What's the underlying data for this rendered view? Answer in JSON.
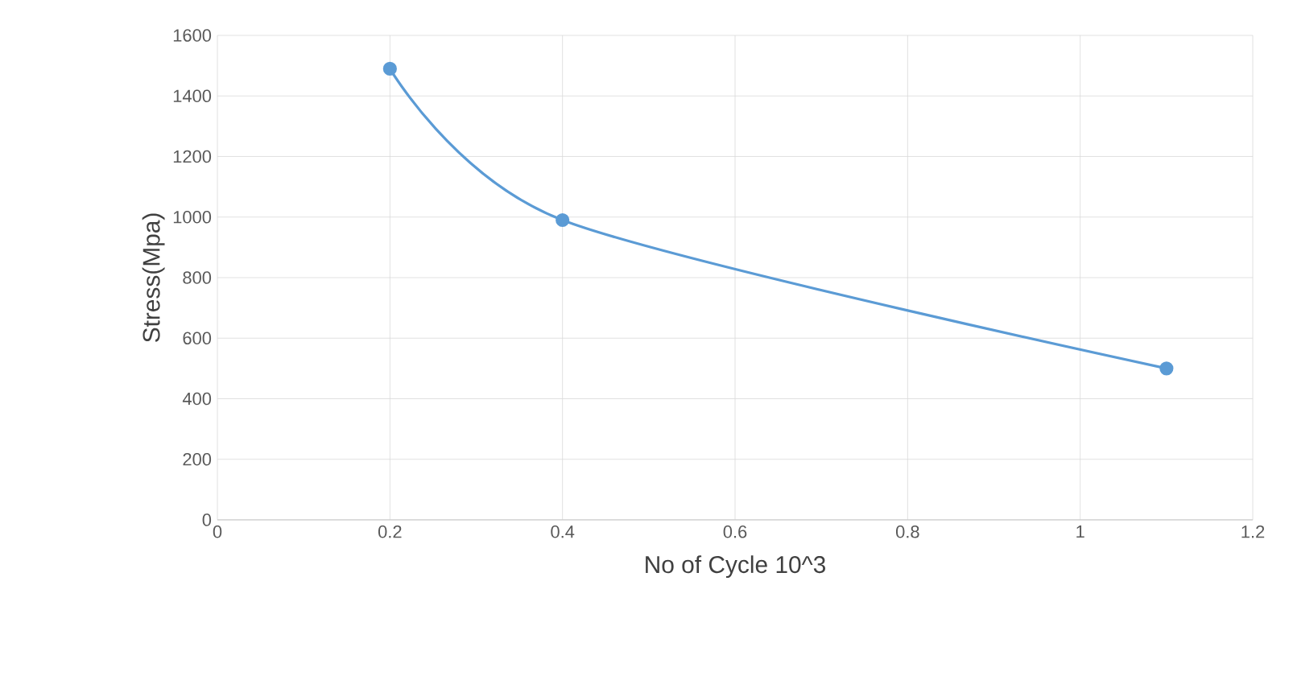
{
  "chart_data": {
    "type": "line",
    "xlabel": "No of Cycle 10^3",
    "ylabel": "Stress(Mpa)",
    "x": [
      0.2,
      0.4,
      1.1
    ],
    "series": [
      {
        "color": "#5b9bd5",
        "values": [
          1490,
          990,
          500
        ]
      }
    ],
    "xlim": [
      0,
      1.2
    ],
    "xticks": [
      0,
      0.2,
      0.4,
      0.6,
      0.8,
      1,
      1.2
    ],
    "ylim": [
      0,
      1600
    ],
    "yticks": [
      0,
      200,
      400,
      600,
      800,
      1000,
      1200,
      1400,
      1600
    ],
    "grid": true,
    "marker": "circle",
    "line_style": "solid"
  }
}
